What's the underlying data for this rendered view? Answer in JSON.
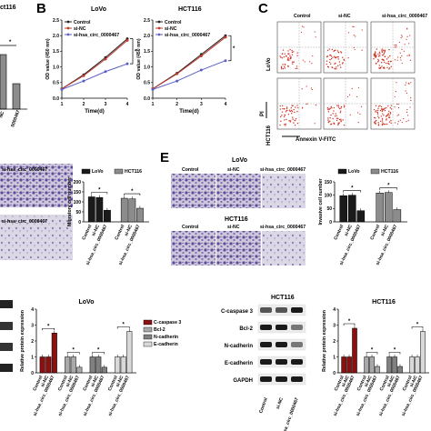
{
  "figure": {
    "panel_letters": [
      "B",
      "C",
      "E"
    ],
    "A_partial": {
      "title_fragment": "ct116",
      "star": "*",
      "x_labels_fragment": [
        "NC",
        "0000467"
      ]
    },
    "B": {
      "lovo_title": "LoVo",
      "hct_title": "HCT116",
      "ylabel": "OD value (450 nm)",
      "xlabel": "Time(d)",
      "xticks": [
        "1",
        "2",
        "3",
        "4"
      ],
      "yticks": [
        "0.0",
        "0.5",
        "1.0",
        "1.5",
        "2.0",
        "2.5"
      ],
      "legend": [
        "Control",
        "si-NC",
        "si-hsa_circ_0000467"
      ],
      "star": "*"
    },
    "C": {
      "row_labels": [
        "LoVo",
        "HCT116"
      ],
      "col_labels": [
        "Control",
        "si-NC",
        "si-hsa_circ_0000467"
      ],
      "ylabel": "PI",
      "xlabel": "Annexin V-FITC"
    },
    "D": {
      "image_label": "si-hsa_circ_0000467",
      "legend": [
        "LoVo",
        "HCT116"
      ],
      "ylabel": "Migratory cell number",
      "yticks": [
        "0",
        "50",
        "100",
        "150",
        "200"
      ],
      "xlabels": [
        "Control",
        "si-NC",
        "si-hsa_circ_0000467"
      ],
      "star": "*"
    },
    "E": {
      "lovo_title": "LoVo",
      "hct_title": "HCT116",
      "col_labels": [
        "Control",
        "si-NC",
        "si-hsa_circ_0000467"
      ],
      "legend": [
        "LoVo",
        "HCT116"
      ],
      "ylabel": "Invasive cell number",
      "yticks": [
        "0",
        "50",
        "100",
        "150"
      ],
      "xlabels": [
        "Control",
        "si-NC",
        "si-hsa_circ_0000467"
      ],
      "star": "*"
    },
    "F": {
      "title": "LoVo",
      "ylabel": "Relative protein expression",
      "yticks": [
        "0",
        "1",
        "2",
        "3",
        "4"
      ],
      "legend": [
        "C-caspase 3",
        "Bcl-2",
        "N-cadherin",
        "E-cadherin"
      ],
      "xlabels": [
        "Control",
        "si-NC",
        "si-hsa_circ_0000467"
      ],
      "star": "*"
    },
    "G": {
      "blot_title": "HCT116",
      "blot_labels": [
        "C-caspase 3",
        "Bcl-2",
        "N-cadherin",
        "E-cadherin",
        "GAPDH"
      ],
      "blot_xlabels": [
        "Control",
        "si-NC",
        "si-hsa_circ_0000467"
      ],
      "title": "HCT116",
      "ylabel": "Relative protein expression",
      "yticks": [
        "0",
        "1",
        "2",
        "3",
        "4"
      ],
      "xlabels": [
        "Control",
        "si-NC",
        "si-hsa_circ_0000467"
      ],
      "star": "*"
    }
  },
  "colors": {
    "control": "#222222",
    "si_nc": "#c0392b",
    "si_circ": "#5b5fc7",
    "lovo_bar": "#1a1a1a",
    "hct_bar": "#8c8c8c",
    "caspase": "#8b1010",
    "bcl2": "#a9a9a9",
    "ncad": "#808080",
    "ecad": "#d9d9d9",
    "flow_dot": "#d03020",
    "transwell": "#7b6fb0"
  },
  "chart_data": [
    {
      "type": "line",
      "title": "LoVo",
      "xlabel": "Time(d)",
      "ylabel": "OD value (450 nm)",
      "x": [
        1,
        2,
        3,
        4
      ],
      "ylim": [
        0,
        2.5
      ],
      "series": [
        {
          "name": "Control",
          "values": [
            0.3,
            0.75,
            1.3,
            1.9
          ]
        },
        {
          "name": "si-NC",
          "values": [
            0.3,
            0.72,
            1.25,
            1.85
          ]
        },
        {
          "name": "si-hsa_circ_0000467",
          "values": [
            0.28,
            0.55,
            0.85,
            1.1
          ]
        }
      ]
    },
    {
      "type": "line",
      "title": "HCT116",
      "xlabel": "Time(d)",
      "ylabel": "OD value (450 nm)",
      "x": [
        1,
        2,
        3,
        4
      ],
      "ylim": [
        0,
        2.5
      ],
      "series": [
        {
          "name": "Control",
          "values": [
            0.3,
            0.8,
            1.4,
            2.0
          ]
        },
        {
          "name": "si-NC",
          "values": [
            0.3,
            0.78,
            1.35,
            1.95
          ]
        },
        {
          "name": "si-hsa_circ_0000467",
          "values": [
            0.28,
            0.55,
            0.9,
            1.2
          ]
        }
      ]
    },
    {
      "type": "bar",
      "ylabel": "Migratory cell number",
      "categories": [
        "Control",
        "si-NC",
        "si-hsa_circ_0000467"
      ],
      "ylim": [
        0,
        200
      ],
      "series": [
        {
          "name": "LoVo",
          "values": [
            125,
            122,
            58
          ]
        },
        {
          "name": "HCT116",
          "values": [
            118,
            115,
            68
          ]
        }
      ]
    },
    {
      "type": "bar",
      "ylabel": "Invasive cell number",
      "categories": [
        "Control",
        "si-NC",
        "si-hsa_circ_0000467"
      ],
      "ylim": [
        0,
        150
      ],
      "series": [
        {
          "name": "LoVo",
          "values": [
            98,
            100,
            42
          ]
        },
        {
          "name": "HCT116",
          "values": [
            108,
            110,
            46
          ]
        }
      ]
    },
    {
      "type": "bar",
      "title": "LoVo",
      "ylabel": "Relative protein expression",
      "categories": [
        "Control",
        "si-NC",
        "si-hsa_circ_0000467"
      ],
      "ylim": [
        0,
        4
      ],
      "series": [
        {
          "name": "C-caspase 3",
          "values": [
            1.0,
            1.0,
            2.5
          ]
        },
        {
          "name": "Bcl-2",
          "values": [
            1.0,
            1.0,
            0.35
          ]
        },
        {
          "name": "N-cadherin",
          "values": [
            1.0,
            1.0,
            0.35
          ]
        },
        {
          "name": "E-cadherin",
          "values": [
            1.0,
            1.0,
            2.6
          ]
        }
      ]
    },
    {
      "type": "bar",
      "title": "HCT116",
      "ylabel": "Relative protein expression",
      "categories": [
        "Control",
        "si-NC",
        "si-hsa_circ_0000467"
      ],
      "ylim": [
        0,
        4
      ],
      "series": [
        {
          "name": "C-caspase 3",
          "values": [
            1.0,
            1.0,
            2.8
          ]
        },
        {
          "name": "Bcl-2",
          "values": [
            1.0,
            1.0,
            0.4
          ]
        },
        {
          "name": "N-cadherin",
          "values": [
            1.0,
            1.0,
            0.4
          ]
        },
        {
          "name": "E-cadherin",
          "values": [
            1.0,
            1.0,
            2.6
          ]
        }
      ]
    }
  ]
}
